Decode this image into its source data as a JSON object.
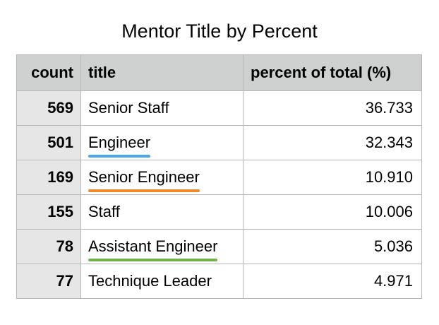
{
  "chart_data": {
    "type": "table",
    "title": "Mentor Title by Percent",
    "columns": [
      "count",
      "title",
      "percent of total (%)"
    ],
    "rows": [
      {
        "count": "569",
        "title": "Senior Staff",
        "percent": "36.733",
        "highlight": ""
      },
      {
        "count": "501",
        "title": "Engineer",
        "percent": "32.343",
        "highlight": "#4aa8e8"
      },
      {
        "count": "169",
        "title": "Senior Engineer",
        "percent": "10.910",
        "highlight": "#ee8a2c"
      },
      {
        "count": "155",
        "title": "Staff",
        "percent": "10.006",
        "highlight": ""
      },
      {
        "count": "78",
        "title": "Assistant Engineer",
        "percent": "5.036",
        "highlight": "#6fb24a"
      },
      {
        "count": "77",
        "title": "Technique Leader",
        "percent": "4.971",
        "highlight": ""
      }
    ]
  },
  "colors": {
    "header_background": "#cfd0d0",
    "count_column_background": "#e6e6e6",
    "grid_line": "#b8b8b8"
  }
}
